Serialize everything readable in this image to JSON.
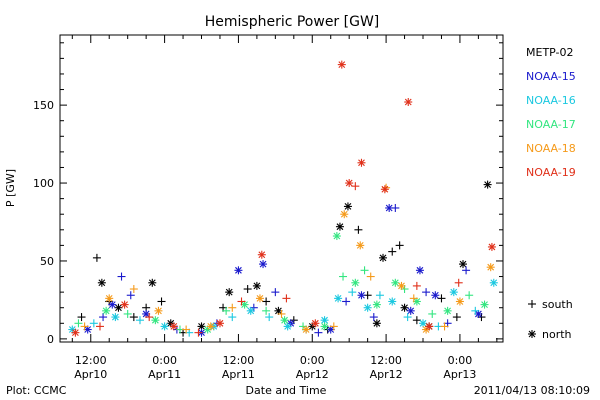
{
  "chart_data": {
    "type": "scatter",
    "title": "Hemispheric Power [GW]",
    "xlabel": "Date and Time",
    "ylabel": "P [GW]",
    "x_unit": "hours",
    "x_ticks": [
      {
        "x": 12,
        "line1": "12:00",
        "line2": "Apr10"
      },
      {
        "x": 24,
        "line1": "0:00",
        "line2": "Apr11"
      },
      {
        "x": 36,
        "line1": "12:00",
        "line2": "Apr11"
      },
      {
        "x": 48,
        "line1": "0:00",
        "line2": "Apr12"
      },
      {
        "x": 60,
        "line1": "12:00",
        "line2": "Apr12"
      },
      {
        "x": 72,
        "line1": "0:00",
        "line2": "Apr13"
      }
    ],
    "xlim": [
      7,
      79
    ],
    "ylim": [
      -2,
      195
    ],
    "y_ticks": [
      0,
      50,
      100,
      150
    ],
    "legend_position": "right",
    "symbols_legend": [
      {
        "symbol": "+",
        "label": "south"
      },
      {
        "symbol": "*",
        "label": "north"
      }
    ],
    "series": [
      {
        "name": "METP-02",
        "color": "#000000",
        "points": [
          {
            "x": 10.5,
            "y": 14,
            "s": "+"
          },
          {
            "x": 13.0,
            "y": 52,
            "s": "+"
          },
          {
            "x": 13.8,
            "y": 36,
            "s": "*"
          },
          {
            "x": 15.0,
            "y": 24,
            "s": "+"
          },
          {
            "x": 16.5,
            "y": 20,
            "s": "*"
          },
          {
            "x": 19.0,
            "y": 14,
            "s": "+"
          },
          {
            "x": 21.0,
            "y": 20,
            "s": "+"
          },
          {
            "x": 22.0,
            "y": 36,
            "s": "*"
          },
          {
            "x": 23.5,
            "y": 24,
            "s": "+"
          },
          {
            "x": 25.0,
            "y": 10,
            "s": "*"
          },
          {
            "x": 27.0,
            "y": 4,
            "s": "+"
          },
          {
            "x": 30.0,
            "y": 8,
            "s": "*"
          },
          {
            "x": 33.5,
            "y": 20,
            "s": "+"
          },
          {
            "x": 34.5,
            "y": 30,
            "s": "*"
          },
          {
            "x": 37.5,
            "y": 32,
            "s": "+"
          },
          {
            "x": 39.0,
            "y": 34,
            "s": "*"
          },
          {
            "x": 40.5,
            "y": 24,
            "s": "+"
          },
          {
            "x": 42.5,
            "y": 18,
            "s": "*"
          },
          {
            "x": 45.0,
            "y": 12,
            "s": "+"
          },
          {
            "x": 48.0,
            "y": 8,
            "s": "*"
          },
          {
            "x": 50.5,
            "y": 6,
            "s": "+"
          },
          {
            "x": 52.5,
            "y": 72,
            "s": "*"
          },
          {
            "x": 53.8,
            "y": 85,
            "s": "*"
          },
          {
            "x": 55.5,
            "y": 70,
            "s": "+"
          },
          {
            "x": 57.0,
            "y": 28,
            "s": "+"
          },
          {
            "x": 58.5,
            "y": 10,
            "s": "*"
          },
          {
            "x": 59.5,
            "y": 52,
            "s": "*"
          },
          {
            "x": 61.0,
            "y": 56,
            "s": "+"
          },
          {
            "x": 62.2,
            "y": 60,
            "s": "+"
          },
          {
            "x": 63.0,
            "y": 20,
            "s": "*"
          },
          {
            "x": 65.0,
            "y": 12,
            "s": "+"
          },
          {
            "x": 67.0,
            "y": 8,
            "s": "*"
          },
          {
            "x": 69.0,
            "y": 26,
            "s": "+"
          },
          {
            "x": 71.5,
            "y": 14,
            "s": "+"
          },
          {
            "x": 72.5,
            "y": 48,
            "s": "*"
          },
          {
            "x": 75.5,
            "y": 14,
            "s": "+"
          },
          {
            "x": 76.5,
            "y": 99,
            "s": "*"
          }
        ]
      },
      {
        "name": "NOAA-15",
        "color": "#1a1acc",
        "points": [
          {
            "x": 11.5,
            "y": 6,
            "s": "*"
          },
          {
            "x": 14.0,
            "y": 14,
            "s": "+"
          },
          {
            "x": 15.5,
            "y": 22,
            "s": "*"
          },
          {
            "x": 17.0,
            "y": 40,
            "s": "+"
          },
          {
            "x": 18.5,
            "y": 28,
            "s": "+"
          },
          {
            "x": 21.0,
            "y": 16,
            "s": "*"
          },
          {
            "x": 26.0,
            "y": 6,
            "s": "+"
          },
          {
            "x": 30.0,
            "y": 4,
            "s": "*"
          },
          {
            "x": 32.5,
            "y": 10,
            "s": "+"
          },
          {
            "x": 36.0,
            "y": 44,
            "s": "*"
          },
          {
            "x": 38.5,
            "y": 20,
            "s": "+"
          },
          {
            "x": 40.0,
            "y": 48,
            "s": "*"
          },
          {
            "x": 42.0,
            "y": 30,
            "s": "+"
          },
          {
            "x": 44.5,
            "y": 10,
            "s": "*"
          },
          {
            "x": 49.0,
            "y": 4,
            "s": "+"
          },
          {
            "x": 51.0,
            "y": 6,
            "s": "*"
          },
          {
            "x": 53.5,
            "y": 24,
            "s": "+"
          },
          {
            "x": 56.0,
            "y": 28,
            "s": "*"
          },
          {
            "x": 58.0,
            "y": 14,
            "s": "+"
          },
          {
            "x": 60.5,
            "y": 84,
            "s": "*"
          },
          {
            "x": 61.5,
            "y": 84,
            "s": "+"
          },
          {
            "x": 64.0,
            "y": 18,
            "s": "*"
          },
          {
            "x": 65.5,
            "y": 44,
            "s": "*"
          },
          {
            "x": 66.5,
            "y": 30,
            "s": "+"
          },
          {
            "x": 68.0,
            "y": 28,
            "s": "*"
          },
          {
            "x": 70.0,
            "y": 10,
            "s": "+"
          },
          {
            "x": 73.0,
            "y": 44,
            "s": "+"
          },
          {
            "x": 75.0,
            "y": 16,
            "s": "*"
          }
        ]
      },
      {
        "name": "NOAA-16",
        "color": "#1ac8e0",
        "points": [
          {
            "x": 9.0,
            "y": 6,
            "s": "*"
          },
          {
            "x": 12.5,
            "y": 10,
            "s": "+"
          },
          {
            "x": 16.0,
            "y": 14,
            "s": "*"
          },
          {
            "x": 20.0,
            "y": 12,
            "s": "+"
          },
          {
            "x": 24.0,
            "y": 8,
            "s": "*"
          },
          {
            "x": 28.0,
            "y": 4,
            "s": "+"
          },
          {
            "x": 32.0,
            "y": 8,
            "s": "*"
          },
          {
            "x": 35.0,
            "y": 14,
            "s": "+"
          },
          {
            "x": 38.0,
            "y": 18,
            "s": "*"
          },
          {
            "x": 41.0,
            "y": 14,
            "s": "+"
          },
          {
            "x": 44.0,
            "y": 8,
            "s": "*"
          },
          {
            "x": 47.0,
            "y": 6,
            "s": "+"
          },
          {
            "x": 50.0,
            "y": 12,
            "s": "*"
          },
          {
            "x": 52.2,
            "y": 26,
            "s": "*"
          },
          {
            "x": 54.5,
            "y": 30,
            "s": "+"
          },
          {
            "x": 57.0,
            "y": 20,
            "s": "*"
          },
          {
            "x": 59.0,
            "y": 28,
            "s": "+"
          },
          {
            "x": 61.0,
            "y": 24,
            "s": "*"
          },
          {
            "x": 63.5,
            "y": 14,
            "s": "+"
          },
          {
            "x": 66.0,
            "y": 10,
            "s": "*"
          },
          {
            "x": 68.5,
            "y": 8,
            "s": "+"
          },
          {
            "x": 71.0,
            "y": 30,
            "s": "*"
          },
          {
            "x": 74.5,
            "y": 18,
            "s": "+"
          },
          {
            "x": 77.5,
            "y": 36,
            "s": "*"
          }
        ]
      },
      {
        "name": "NOAA-17",
        "color": "#33e680",
        "points": [
          {
            "x": 10.0,
            "y": 10,
            "s": "+"
          },
          {
            "x": 14.5,
            "y": 18,
            "s": "*"
          },
          {
            "x": 18.0,
            "y": 16,
            "s": "+"
          },
          {
            "x": 22.5,
            "y": 12,
            "s": "*"
          },
          {
            "x": 26.5,
            "y": 6,
            "s": "+"
          },
          {
            "x": 31.0,
            "y": 6,
            "s": "*"
          },
          {
            "x": 34.0,
            "y": 18,
            "s": "+"
          },
          {
            "x": 37.0,
            "y": 22,
            "s": "*"
          },
          {
            "x": 40.5,
            "y": 18,
            "s": "+"
          },
          {
            "x": 43.5,
            "y": 12,
            "s": "*"
          },
          {
            "x": 46.5,
            "y": 8,
            "s": "+"
          },
          {
            "x": 50.0,
            "y": 8,
            "s": "*"
          },
          {
            "x": 52.0,
            "y": 66,
            "s": "*"
          },
          {
            "x": 53.0,
            "y": 40,
            "s": "+"
          },
          {
            "x": 55.0,
            "y": 36,
            "s": "*"
          },
          {
            "x": 56.5,
            "y": 44,
            "s": "+"
          },
          {
            "x": 58.5,
            "y": 22,
            "s": "*"
          },
          {
            "x": 61.5,
            "y": 36,
            "s": "*"
          },
          {
            "x": 63.0,
            "y": 32,
            "s": "+"
          },
          {
            "x": 65.0,
            "y": 24,
            "s": "*"
          },
          {
            "x": 67.5,
            "y": 16,
            "s": "+"
          },
          {
            "x": 70.0,
            "y": 18,
            "s": "*"
          },
          {
            "x": 73.5,
            "y": 28,
            "s": "+"
          },
          {
            "x": 76.0,
            "y": 22,
            "s": "*"
          }
        ]
      },
      {
        "name": "NOAA-18",
        "color": "#f59a1a",
        "points": [
          {
            "x": 11.0,
            "y": 8,
            "s": "+"
          },
          {
            "x": 15.0,
            "y": 26,
            "s": "*"
          },
          {
            "x": 19.0,
            "y": 32,
            "s": "+"
          },
          {
            "x": 23.0,
            "y": 18,
            "s": "*"
          },
          {
            "x": 27.5,
            "y": 6,
            "s": "+"
          },
          {
            "x": 31.5,
            "y": 8,
            "s": "*"
          },
          {
            "x": 35.0,
            "y": 20,
            "s": "+"
          },
          {
            "x": 39.5,
            "y": 26,
            "s": "*"
          },
          {
            "x": 43.0,
            "y": 16,
            "s": "+"
          },
          {
            "x": 47.0,
            "y": 6,
            "s": "*"
          },
          {
            "x": 51.5,
            "y": 8,
            "s": "+"
          },
          {
            "x": 53.2,
            "y": 80,
            "s": "*"
          },
          {
            "x": 55.8,
            "y": 60,
            "s": "*"
          },
          {
            "x": 57.5,
            "y": 40,
            "s": "+"
          },
          {
            "x": 60.0,
            "y": 97,
            "s": "+"
          },
          {
            "x": 62.5,
            "y": 34,
            "s": "*"
          },
          {
            "x": 64.5,
            "y": 26,
            "s": "+"
          },
          {
            "x": 66.5,
            "y": 6,
            "s": "*"
          },
          {
            "x": 69.5,
            "y": 8,
            "s": "+"
          },
          {
            "x": 72.0,
            "y": 24,
            "s": "*"
          },
          {
            "x": 77.0,
            "y": 46,
            "s": "*"
          }
        ]
      },
      {
        "name": "NOAA-19",
        "color": "#e0301a",
        "points": [
          {
            "x": 9.5,
            "y": 4,
            "s": "*"
          },
          {
            "x": 13.5,
            "y": 8,
            "s": "+"
          },
          {
            "x": 17.5,
            "y": 22,
            "s": "*"
          },
          {
            "x": 21.5,
            "y": 14,
            "s": "+"
          },
          {
            "x": 25.5,
            "y": 8,
            "s": "*"
          },
          {
            "x": 29.5,
            "y": 4,
            "s": "+"
          },
          {
            "x": 33.0,
            "y": 10,
            "s": "*"
          },
          {
            "x": 36.5,
            "y": 24,
            "s": "+"
          },
          {
            "x": 39.8,
            "y": 54,
            "s": "*"
          },
          {
            "x": 43.8,
            "y": 26,
            "s": "+"
          },
          {
            "x": 48.5,
            "y": 10,
            "s": "*"
          },
          {
            "x": 52.8,
            "y": 176,
            "s": "*"
          },
          {
            "x": 54.0,
            "y": 100,
            "s": "*"
          },
          {
            "x": 55.0,
            "y": 98,
            "s": "+"
          },
          {
            "x": 56.0,
            "y": 113,
            "s": "*"
          },
          {
            "x": 59.8,
            "y": 96,
            "s": "*"
          },
          {
            "x": 63.6,
            "y": 152,
            "s": "*"
          },
          {
            "x": 65.0,
            "y": 34,
            "s": "+"
          },
          {
            "x": 67.0,
            "y": 8,
            "s": "*"
          },
          {
            "x": 71.8,
            "y": 36,
            "s": "+"
          },
          {
            "x": 77.2,
            "y": 59,
            "s": "*"
          }
        ]
      }
    ]
  },
  "footer": {
    "left": "Plot: CCMC",
    "right": "2011/04/13 08:10:09"
  }
}
